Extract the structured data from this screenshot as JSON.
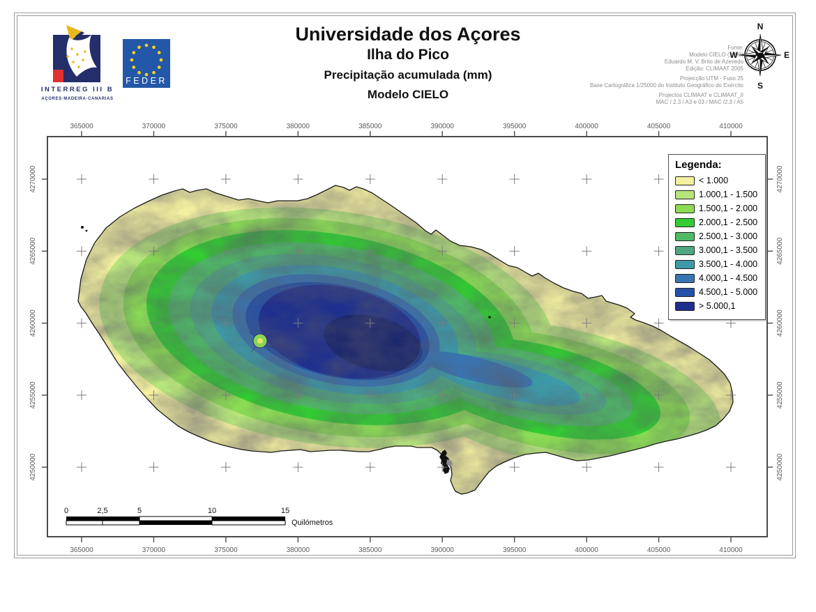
{
  "header": {
    "title": "Universidade dos Açores",
    "subtitle1": "Ilha do Pico",
    "subtitle2": "Precipitação acumulada (mm)",
    "subtitle3": "Modelo CIELO"
  },
  "logos": {
    "interreg": {
      "line1": "INTERREG III B",
      "line2": "AÇORES·MADEIRA·CANARIAS",
      "navy": "#232e6a",
      "red": "#e03030",
      "gold": "#e8b81e"
    },
    "feder": {
      "label": "FEDER",
      "blue": "#2457a7",
      "star_gold": "#ffd617"
    }
  },
  "source": {
    "fonte": [
      "Fonte:",
      "Modelo CIELO (1996)",
      "Eduardo M. V. Brito de Azevedo",
      "Edição: CLIMAAT 2005"
    ],
    "projection": [
      "Projecção UTM - Fuso 25",
      "Base Cartográfica 1/25000 do Instituto Geográfico do Exército"
    ],
    "projects": [
      "Projectos CLIMAAT e CLIMAAT_II",
      "MAC / 2.3 / A3 e 03 / MAC /2.3 / A5"
    ]
  },
  "compass": {
    "n": "N",
    "e": "E",
    "s": "S",
    "w": "W"
  },
  "map": {
    "x_ticks": [
      "365000",
      "370000",
      "375000",
      "380000",
      "385000",
      "390000",
      "395000",
      "400000",
      "405000",
      "410000"
    ],
    "y_ticks": [
      "4270000",
      "4265000",
      "4260000",
      "4255000",
      "4250000"
    ]
  },
  "legend": {
    "title": "Legenda:",
    "items": [
      {
        "label": "< 1.000",
        "color": "#f3f0a0"
      },
      {
        "label": "1.000,1 - 1.500",
        "color": "#b7e57c"
      },
      {
        "label": "1.500,1 - 2.000",
        "color": "#8bdb55"
      },
      {
        "label": "2.000,1 - 2.500",
        "color": "#33cc33"
      },
      {
        "label": "2.500,1 - 3.000",
        "color": "#4fba66"
      },
      {
        "label": "3.000,1 - 3.500",
        "color": "#4fa781"
      },
      {
        "label": "3.500,1 - 4.000",
        "color": "#3d9aa8"
      },
      {
        "label": "4.000,1 - 4.500",
        "color": "#3875b2"
      },
      {
        "label": "4.500,1 - 5.000",
        "color": "#2451a8"
      },
      {
        "label": "> 5.000,1",
        "color": "#1e2f8e"
      }
    ]
  },
  "scalebar": {
    "labels": [
      "0",
      "2,5",
      "5",
      "10",
      "15"
    ],
    "unit": "Quilómetros"
  }
}
